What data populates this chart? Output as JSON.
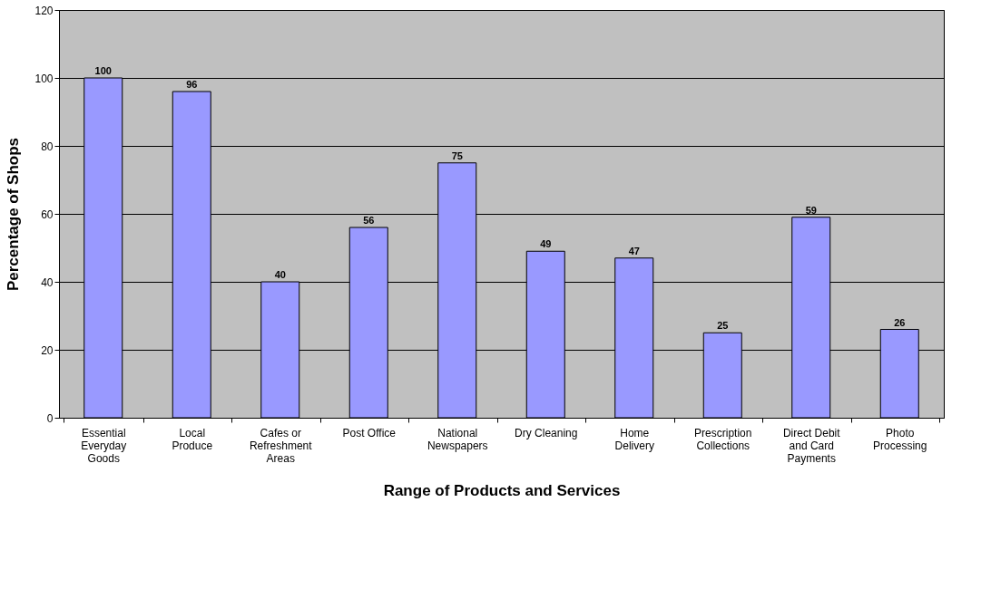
{
  "chart_data": {
    "type": "bar",
    "xlabel": "Range of Products and Services",
    "ylabel": "Percentage of Shops",
    "categories": [
      "Essential Everyday Goods",
      "Local Produce",
      "Cafes or Refreshment Areas",
      "Post Office",
      "National Newspapers",
      "Dry Cleaning",
      "Home Delivery",
      "Prescription Collections",
      "Direct Debit and Card Payments",
      "Photo Processing"
    ],
    "values": [
      100,
      96,
      40,
      56,
      75,
      49,
      47,
      25,
      59,
      26
    ],
    "color": "#9999ff",
    "ylim": [
      0,
      120
    ],
    "yticks": [
      0,
      20,
      40,
      60,
      80,
      100,
      120
    ],
    "grid": "y",
    "data_labels": true
  }
}
